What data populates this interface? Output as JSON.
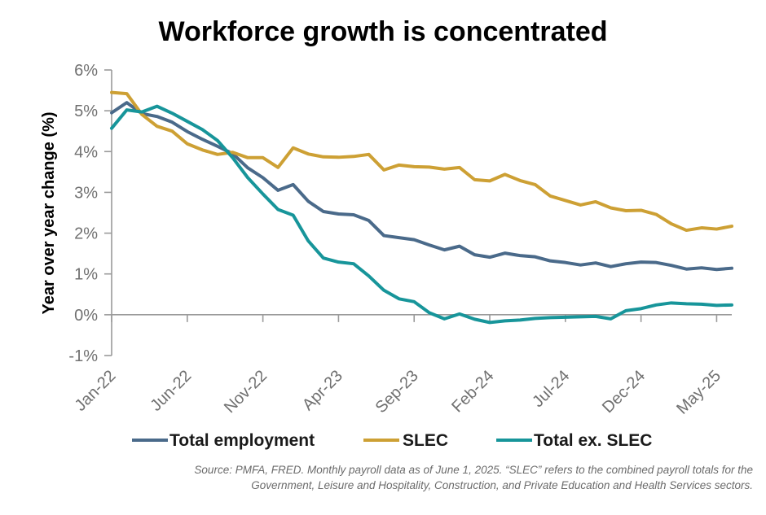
{
  "chart_data": {
    "type": "line",
    "title": "Workforce growth is concentrated",
    "ylabel": "Year over year change (%)",
    "xlabel": "",
    "ylim": [
      -1,
      6
    ],
    "yticks": [
      -1,
      0,
      1,
      2,
      3,
      4,
      5,
      6
    ],
    "ytick_labels": [
      "-1%",
      "0%",
      "1%",
      "2%",
      "3%",
      "4%",
      "5%",
      "6%"
    ],
    "x_months": 42,
    "xtick_labels": [
      {
        "label": "Jan-22",
        "index": 0
      },
      {
        "label": "Jun-22",
        "index": 5
      },
      {
        "label": "Nov-22",
        "index": 10
      },
      {
        "label": "Apr-23",
        "index": 15
      },
      {
        "label": "Sep-23",
        "index": 20
      },
      {
        "label": "Feb-24",
        "index": 25
      },
      {
        "label": "Jul-24",
        "index": 30
      },
      {
        "label": "Dec-24",
        "index": 35
      },
      {
        "label": "May-25",
        "index": 40
      }
    ],
    "legend_position": "bottom",
    "series": [
      {
        "name": "Total employment",
        "color": "#4A6A8A",
        "values": [
          4.95,
          5.2,
          4.93,
          4.86,
          4.72,
          4.49,
          4.3,
          4.13,
          3.95,
          3.6,
          3.36,
          3.05,
          3.19,
          2.78,
          2.53,
          2.47,
          2.45,
          2.31,
          1.94,
          1.89,
          1.84,
          1.71,
          1.59,
          1.68,
          1.47,
          1.41,
          1.51,
          1.45,
          1.42,
          1.32,
          1.28,
          1.22,
          1.27,
          1.18,
          1.25,
          1.29,
          1.28,
          1.21,
          1.12,
          1.15,
          1.11,
          1.14
        ]
      },
      {
        "name": "SLEC",
        "color": "#CDA034",
        "values": [
          5.45,
          5.42,
          4.91,
          4.62,
          4.5,
          4.19,
          4.04,
          3.93,
          3.98,
          3.85,
          3.85,
          3.61,
          4.09,
          3.94,
          3.87,
          3.86,
          3.88,
          3.93,
          3.55,
          3.67,
          3.63,
          3.62,
          3.57,
          3.61,
          3.31,
          3.28,
          3.44,
          3.29,
          3.19,
          2.91,
          2.8,
          2.69,
          2.77,
          2.62,
          2.55,
          2.56,
          2.46,
          2.23,
          2.07,
          2.13,
          2.1,
          2.17
        ]
      },
      {
        "name": "Total ex. SLEC",
        "color": "#17959A",
        "values": [
          4.57,
          5.02,
          4.97,
          5.11,
          4.94,
          4.74,
          4.54,
          4.27,
          3.85,
          3.36,
          2.96,
          2.58,
          2.44,
          1.81,
          1.39,
          1.29,
          1.25,
          0.95,
          0.6,
          0.39,
          0.32,
          0.05,
          -0.1,
          0.02,
          -0.11,
          -0.19,
          -0.15,
          -0.13,
          -0.09,
          -0.07,
          -0.06,
          -0.05,
          -0.04,
          -0.1,
          0.1,
          0.15,
          0.24,
          0.29,
          0.27,
          0.26,
          0.23,
          0.24
        ]
      }
    ],
    "source": "Source: PMFA, FRED. Monthly payroll data as of June 1, 2025. “SLEC” refers to the combined payroll totals for the Government, Leisure and Hospitality, Construction, and Private Education and Health Services sectors."
  }
}
